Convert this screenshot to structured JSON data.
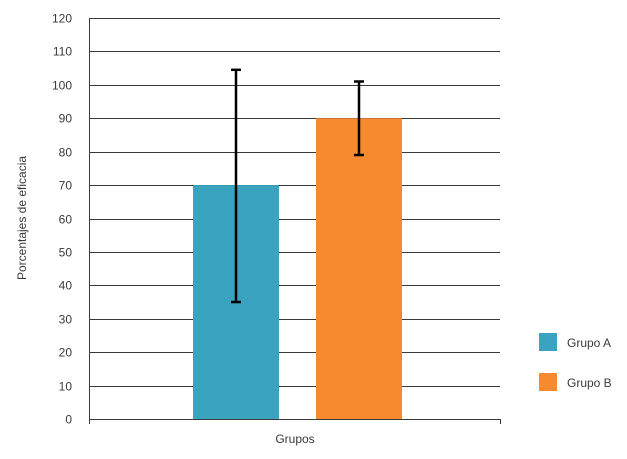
{
  "chart_data": {
    "type": "bar",
    "title": "",
    "xlabel": "Grupos",
    "ylabel": "Porcentajes de eficacia",
    "ylim": [
      0,
      120
    ],
    "ytick_step": 10,
    "grid": true,
    "legend_position": "right",
    "series": [
      {
        "name": "Grupo A",
        "value": 70,
        "error_low": 35,
        "error_high": 104.5,
        "color": "#3aa3bf"
      },
      {
        "name": "Grupo B",
        "value": 90,
        "error_low": 79,
        "error_high": 101,
        "color": "#f78a2e"
      }
    ]
  }
}
